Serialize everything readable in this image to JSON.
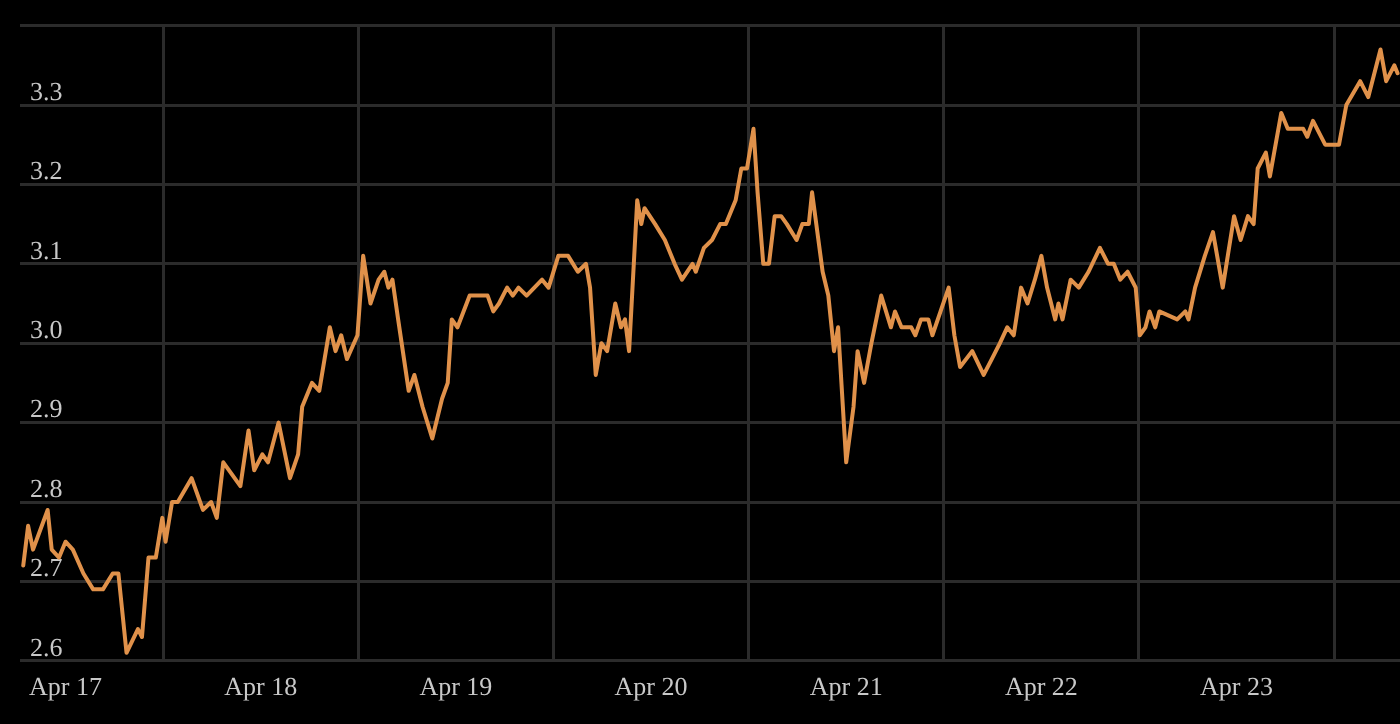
{
  "chart_data": {
    "type": "line",
    "grid": true,
    "legend": false,
    "marker": "none",
    "line_style": "solid",
    "xlim": [
      "--04-17T06:24",
      "--04-24T08:06"
    ],
    "xticks": [
      {
        "value": "--04-17T12:00",
        "label": "Apr 17"
      },
      {
        "value": "--04-18T00:00",
        "label": null
      },
      {
        "value": "--04-18T12:00",
        "label": "Apr 18"
      },
      {
        "value": "--04-19T00:00",
        "label": null
      },
      {
        "value": "--04-19T12:00",
        "label": "Apr 19"
      },
      {
        "value": "--04-20T00:00",
        "label": null
      },
      {
        "value": "--04-20T12:00",
        "label": "Apr 20"
      },
      {
        "value": "--04-21T00:00",
        "label": null
      },
      {
        "value": "--04-21T12:00",
        "label": "Apr 21"
      },
      {
        "value": "--04-22T00:00",
        "label": null
      },
      {
        "value": "--04-22T12:00",
        "label": "Apr 22"
      },
      {
        "value": "--04-23T00:00",
        "label": null
      },
      {
        "value": "--04-23T12:00",
        "label": "Apr 23"
      },
      {
        "value": "--04-24T00:00",
        "label": null
      }
    ],
    "ylim": [
      2.6,
      3.4
    ],
    "yticks": [
      {
        "value": 2.6,
        "label": "2.6"
      },
      {
        "value": 2.7,
        "label": "2.7"
      },
      {
        "value": 2.8,
        "label": "2.8"
      },
      {
        "value": 2.9,
        "label": "2.9"
      },
      {
        "value": 3.0,
        "label": "3.0"
      },
      {
        "value": 3.1,
        "label": "3.1"
      },
      {
        "value": 3.2,
        "label": "3.2"
      },
      {
        "value": 3.3,
        "label": "3.3"
      },
      {
        "value": 3.4,
        "label": null
      }
    ],
    "series": [
      {
        "color": "#e0914a",
        "x": [
          "--04-17T06:48",
          "--04-17T07:24",
          "--04-17T08:00",
          "--04-17T09:48",
          "--04-17T10:18",
          "--04-17T11:12",
          "--04-17T12:00",
          "--04-17T12:54",
          "--04-17T14:12",
          "--04-17T15:24",
          "--04-17T16:36",
          "--04-17T17:48",
          "--04-17T18:30",
          "--04-17T19:30",
          "--04-17T20:54",
          "--04-17T21:24",
          "--04-17T22:12",
          "--04-17T23:06",
          "--04-17T23:54",
          "--04-18T00:18",
          "--04-18T01:06",
          "--04-18T01:48",
          "--04-18T03:30",
          "--04-18T04:54",
          "--04-18T05:54",
          "--04-18T06:36",
          "--04-18T07:24",
          "--04-18T09:30",
          "--04-18T10:30",
          "--04-18T11:12",
          "--04-18T12:12",
          "--04-18T12:54",
          "--04-18T14:12",
          "--04-18T15:36",
          "--04-18T16:36",
          "--04-18T17:06",
          "--04-18T18:18",
          "--04-18T19:12",
          "--04-18T20:30",
          "--04-18T21:12",
          "--04-18T21:54",
          "--04-18T22:36",
          "--04-18T23:54",
          "--04-19T00:36",
          "--04-19T01:30",
          "--04-19T02:30",
          "--04-19T03:12",
          "--04-19T03:42",
          "--04-19T04:12",
          "--04-19T04:54",
          "--04-19T06:12",
          "--04-19T06:54",
          "--04-19T07:54",
          "--04-19T09:06",
          "--04-19T10:18",
          "--04-19T11:00",
          "--04-19T11:30",
          "--04-19T12:12",
          "--04-19T13:42",
          "--04-19T14:54",
          "--04-19T15:54",
          "--04-19T16:36",
          "--04-19T17:18",
          "--04-19T18:18",
          "--04-19T19:00",
          "--04-19T19:42",
          "--04-19T20:42",
          "--04-19T22:36",
          "--04-19T23:24",
          "--04-20T00:36",
          "--04-20T01:48",
          "--04-20T03:00",
          "--04-20T04:00",
          "--04-20T04:30",
          "--04-20T05:12",
          "--04-20T05:54",
          "--04-20T06:36",
          "--04-20T07:36",
          "--04-20T08:18",
          "--04-20T08:48",
          "--04-20T09:18",
          "--04-20T10:18",
          "--04-20T10:48",
          "--04-20T11:12",
          "--04-20T12:30",
          "--04-20T13:42",
          "--04-20T14:54",
          "--04-20T15:48",
          "--04-20T17:06",
          "--04-20T17:30",
          "--04-20T18:30",
          "--04-20T19:30",
          "--04-20T20:30",
          "--04-20T21:12",
          "--04-20T22:24",
          "--04-20T23:06",
          "--04-20T23:48",
          "--04-21T00:36",
          "--04-21T01:06",
          "--04-21T01:48",
          "--04-21T02:30",
          "--04-21T03:12",
          "--04-21T04:00",
          "--04-21T04:42",
          "--04-21T05:54",
          "--04-21T06:36",
          "--04-21T07:24",
          "--04-21T07:48",
          "--04-21T09:06",
          "--04-21T09:48",
          "--04-21T10:30",
          "--04-21T11:00",
          "--04-21T12:00",
          "--04-21T12:54",
          "--04-21T13:24",
          "--04-21T14:12",
          "--04-21T15:06",
          "--04-21T16:18",
          "--04-21T17:30",
          "--04-21T18:00",
          "--04-21T18:48",
          "--04-21T20:00",
          "--04-21T20:30",
          "--04-21T21:12",
          "--04-21T22:06",
          "--04-21T22:36",
          "--04-21T23:36",
          "--04-22T00:36",
          "--04-22T01:18",
          "--04-22T02:00",
          "--04-22T03:30",
          "--04-22T04:54",
          "--04-22T05:54",
          "--04-22T06:54",
          "--04-22T07:48",
          "--04-22T08:36",
          "--04-22T09:30",
          "--04-22T10:18",
          "--04-22T11:12",
          "--04-22T12:00",
          "--04-22T12:42",
          "--04-22T13:42",
          "--04-22T14:06",
          "--04-22T14:36",
          "--04-22T15:36",
          "--04-22T16:36",
          "--04-22T17:48",
          "--04-22T19:12",
          "--04-22T20:12",
          "--04-22T20:54",
          "--04-22T21:42",
          "--04-22T22:36",
          "--04-22T23:36",
          "--04-23T00:06",
          "--04-23T00:48",
          "--04-23T01:18",
          "--04-23T02:00",
          "--04-23T02:30",
          "--04-23T04:42",
          "--04-23T05:42",
          "--04-23T06:06",
          "--04-23T06:54",
          "--04-23T08:06",
          "--04-23T09:06",
          "--04-23T10:18",
          "--04-23T11:42",
          "--04-23T12:30",
          "--04-23T13:24",
          "--04-23T14:06",
          "--04-23T14:36",
          "--04-23T15:36",
          "--04-23T16:06",
          "--04-23T17:30",
          "--04-23T18:18",
          "--04-23T19:30",
          "--04-23T20:12",
          "--04-23T20:42",
          "--04-23T21:24",
          "--04-23T22:54",
          "--04-24T00:06",
          "--04-24T00:36",
          "--04-24T01:30",
          "--04-24T03:12",
          "--04-24T04:12",
          "--04-24T05:42",
          "--04-24T06:24",
          "--04-24T07:24",
          "--04-24T07:48"
        ],
        "values": [
          2.72,
          2.77,
          2.74,
          2.79,
          2.74,
          2.73,
          2.75,
          2.74,
          2.71,
          2.69,
          2.69,
          2.71,
          2.71,
          2.61,
          2.64,
          2.63,
          2.73,
          2.73,
          2.78,
          2.75,
          2.8,
          2.8,
          2.83,
          2.79,
          2.8,
          2.78,
          2.85,
          2.82,
          2.89,
          2.84,
          2.86,
          2.85,
          2.9,
          2.83,
          2.86,
          2.92,
          2.95,
          2.94,
          3.02,
          2.99,
          3.01,
          2.98,
          3.01,
          3.11,
          3.05,
          3.08,
          3.09,
          3.07,
          3.08,
          3.03,
          2.94,
          2.96,
          2.92,
          2.88,
          2.93,
          2.95,
          3.03,
          3.02,
          3.06,
          3.06,
          3.06,
          3.04,
          3.05,
          3.07,
          3.06,
          3.07,
          3.06,
          3.08,
          3.07,
          3.11,
          3.11,
          3.09,
          3.1,
          3.07,
          2.96,
          3.0,
          2.99,
          3.05,
          3.02,
          3.03,
          2.99,
          3.18,
          3.15,
          3.17,
          3.15,
          3.13,
          3.1,
          3.08,
          3.1,
          3.09,
          3.12,
          3.13,
          3.15,
          3.15,
          3.18,
          3.22,
          3.22,
          3.27,
          3.19,
          3.1,
          3.1,
          3.16,
          3.16,
          3.15,
          3.13,
          3.15,
          3.15,
          3.19,
          3.09,
          3.06,
          2.99,
          3.02,
          2.85,
          2.92,
          2.99,
          2.95,
          3.0,
          3.06,
          3.02,
          3.04,
          3.02,
          3.02,
          3.01,
          3.03,
          3.03,
          3.01,
          3.04,
          3.07,
          3.01,
          2.97,
          2.99,
          2.96,
          2.98,
          3.0,
          3.02,
          3.01,
          3.07,
          3.05,
          3.08,
          3.11,
          3.07,
          3.03,
          3.05,
          3.03,
          3.08,
          3.07,
          3.09,
          3.12,
          3.1,
          3.1,
          3.08,
          3.09,
          3.07,
          3.01,
          3.02,
          3.04,
          3.02,
          3.04,
          3.03,
          3.04,
          3.03,
          3.07,
          3.11,
          3.14,
          3.07,
          3.16,
          3.13,
          3.16,
          3.15,
          3.22,
          3.24,
          3.21,
          3.29,
          3.27,
          3.27,
          3.27,
          3.26,
          3.28,
          3.25,
          3.25,
          3.25,
          3.3,
          3.33,
          3.31,
          3.37,
          3.33,
          3.35,
          3.34
        ]
      }
    ]
  }
}
